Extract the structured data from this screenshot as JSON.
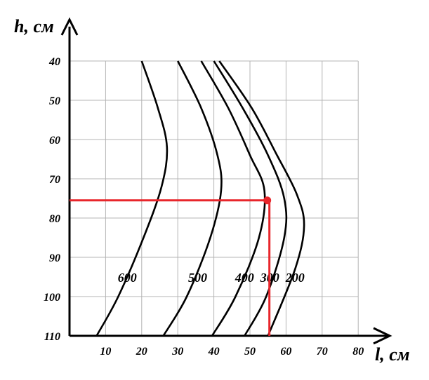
{
  "chart_data": {
    "type": "line",
    "xlabel": "l, см",
    "ylabel": "h, см",
    "xlim": [
      0,
      80
    ],
    "ylim": [
      110,
      40
    ],
    "x_ticks": [
      10,
      20,
      30,
      40,
      50,
      60,
      70,
      80
    ],
    "y_ticks": [
      40,
      50,
      60,
      70,
      80,
      90,
      100,
      110
    ],
    "grid": true,
    "series": [
      {
        "name": "600",
        "points": [
          [
            20,
            40
          ],
          [
            24.5,
            52
          ],
          [
            27,
            62
          ],
          [
            25.5,
            72
          ],
          [
            20.5,
            85
          ],
          [
            13.5,
            100
          ],
          [
            7.5,
            110
          ]
        ]
      },
      {
        "name": "500",
        "points": [
          [
            30,
            40
          ],
          [
            36.5,
            52
          ],
          [
            41,
            64
          ],
          [
            42,
            73
          ],
          [
            39,
            85
          ],
          [
            32.5,
            100
          ],
          [
            26,
            110
          ]
        ]
      },
      {
        "name": "400",
        "points": [
          [
            36.5,
            40
          ],
          [
            44,
            52
          ],
          [
            50,
            64
          ],
          [
            54,
            73
          ],
          [
            52.5,
            85
          ],
          [
            46,
            100
          ],
          [
            39.5,
            110
          ]
        ]
      },
      {
        "name": "300",
        "points": [
          [
            40,
            40
          ],
          [
            48,
            52
          ],
          [
            55,
            64
          ],
          [
            59.5,
            75
          ],
          [
            59.5,
            85
          ],
          [
            54.5,
            100
          ],
          [
            48.5,
            110
          ]
        ]
      },
      {
        "name": "200",
        "points": [
          [
            41.5,
            40
          ],
          [
            50.5,
            52
          ],
          [
            57.5,
            64
          ],
          [
            63,
            74
          ],
          [
            65,
            82
          ],
          [
            62.5,
            93
          ],
          [
            55,
            110
          ]
        ]
      }
    ],
    "curve_labels": [
      {
        "text": "600",
        "x": 16,
        "y": 95
      },
      {
        "text": "500",
        "x": 35.5,
        "y": 95
      },
      {
        "text": "400",
        "x": 48.5,
        "y": 95
      },
      {
        "text": "300",
        "x": 55.5,
        "y": 95
      },
      {
        "text": "200",
        "x": 62.5,
        "y": 95
      }
    ],
    "marker": {
      "x": 54.8,
      "y": 75.5,
      "color": "#e8262b"
    },
    "colors": {
      "curves": "#000000",
      "highlight": "#e8262b",
      "grid": "#b4b4b4"
    }
  }
}
